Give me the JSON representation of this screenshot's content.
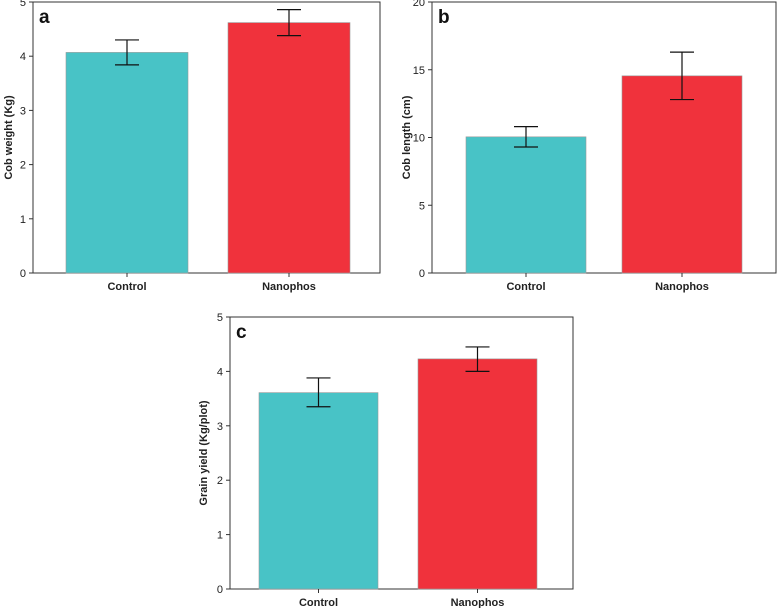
{
  "colors": {
    "control": "#48c3c6",
    "nanophos": "#f0323c"
  },
  "chart_data": [
    {
      "panel": "a",
      "type": "bar",
      "categories": [
        "Control",
        "Nanophos"
      ],
      "values": [
        4.07,
        4.62
      ],
      "error_low": [
        3.84,
        4.38
      ],
      "error_high": [
        4.3,
        4.86
      ],
      "ylabel": "Cob weight (Kg)",
      "xlabel": "",
      "ylim": [
        0,
        5
      ],
      "yticks": [
        "0",
        "1",
        "2",
        "3",
        "4",
        "5"
      ],
      "grid": false
    },
    {
      "panel": "b",
      "type": "bar",
      "categories": [
        "Control",
        "Nanophos"
      ],
      "values": [
        10.05,
        14.55
      ],
      "error_low": [
        9.3,
        12.8
      ],
      "error_high": [
        10.8,
        16.3
      ],
      "ylabel": "Cob length (cm)",
      "xlabel": "",
      "ylim": [
        0,
        20
      ],
      "yticks": [
        "0",
        "5",
        "10",
        "15",
        "20"
      ],
      "grid": false
    },
    {
      "panel": "c",
      "type": "bar",
      "categories": [
        "Control",
        "Nanophos"
      ],
      "values": [
        3.61,
        4.23
      ],
      "error_low": [
        3.35,
        4.0
      ],
      "error_high": [
        3.88,
        4.45
      ],
      "ylabel": "Grain yield (Kg/plot)",
      "xlabel": "",
      "ylim": [
        0,
        5
      ],
      "yticks": [
        "0",
        "1",
        "2",
        "3",
        "4",
        "5"
      ],
      "grid": false
    }
  ]
}
